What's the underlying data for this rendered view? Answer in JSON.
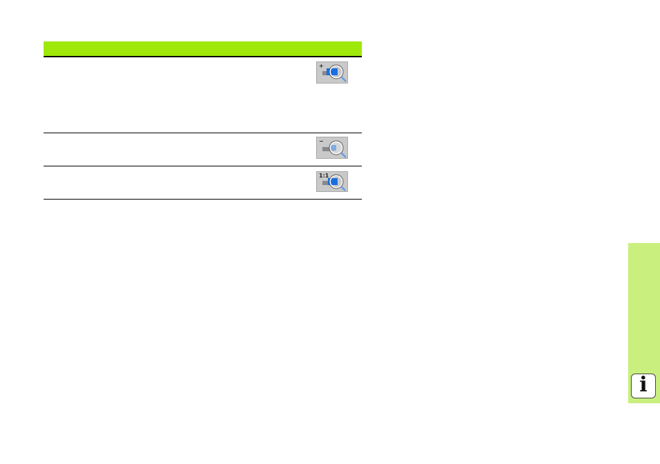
{
  "table": {
    "header": "",
    "rows": [
      {
        "icon": "zoom-in-softkey-icon",
        "glyph": "+"
      },
      {
        "icon": "zoom-out-softkey-icon",
        "glyph": "−"
      },
      {
        "icon": "zoom-1to1-softkey-icon",
        "glyph": "1:1"
      }
    ]
  },
  "side_tab": {
    "icon": "info-icon",
    "letter": "i",
    "color": "#c9f07e"
  },
  "colors": {
    "header": "#9ee80a"
  }
}
